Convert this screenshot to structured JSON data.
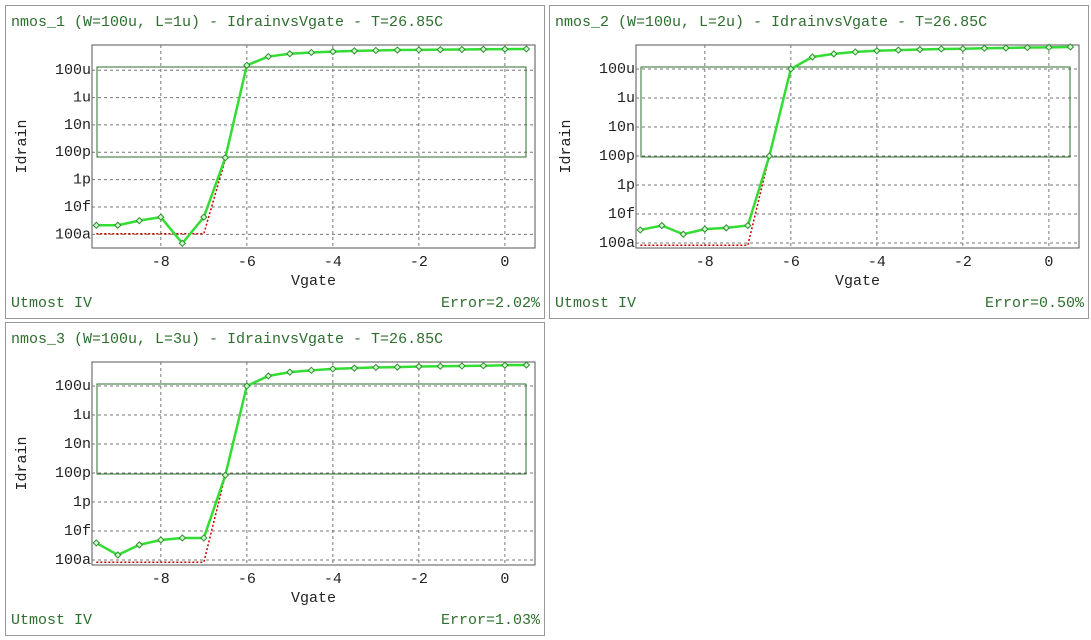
{
  "chart_data": [
    {
      "type": "line",
      "title": "nmos_1 (W=100u, L=1u) - IdrainvsVgate - T=26.85C",
      "x_label": "Vgate",
      "y_label": "Idrain",
      "footer_left": "Utmost IV",
      "footer_right": "Error=2.02%",
      "log_y": true,
      "grid": true,
      "xlim": [
        -9.6,
        0.7
      ],
      "xticks": [
        -8,
        -6,
        -4,
        -2,
        0
      ],
      "ylim": [
        1e-17,
        0.007
      ],
      "yticks": [
        {
          "value": 1e-16,
          "label": "100a"
        },
        {
          "value": 1e-14,
          "label": "10f"
        },
        {
          "value": 1e-12,
          "label": "1p"
        },
        {
          "value": 1e-10,
          "label": "100p"
        },
        {
          "value": 1e-08,
          "label": "10n"
        },
        {
          "value": 1e-06,
          "label": "1u"
        },
        {
          "value": 0.0001,
          "label": "100u"
        }
      ],
      "x": [
        -9.5,
        -9,
        -8.5,
        -8,
        -7.5,
        -7,
        -6.5,
        -6,
        -5.5,
        -5,
        -4.5,
        -4,
        -3.5,
        -3,
        -2.5,
        -2,
        -1.5,
        -1,
        -0.5,
        0,
        0.5
      ],
      "series": [
        {
          "color": "#cc0000",
          "line_style": "dotted",
          "markers": false,
          "values": [
            1.1e-16,
            1.1e-16,
            1.1e-16,
            1.1e-16,
            1.1e-16,
            1.1e-16,
            3e-11,
            0.00023,
            0.001,
            0.0016,
            0.002,
            0.0023,
            0.0026,
            0.0028,
            0.003,
            0.0031,
            0.0032,
            0.0033,
            0.0034,
            0.0035,
            0.0036
          ]
        },
        {
          "color": "#33dd33",
          "line_style": "solid",
          "markers": true,
          "values": [
            4.6e-16,
            4.6e-16,
            1e-15,
            1.8e-15,
            2.2e-17,
            1.8e-15,
            4e-11,
            0.00023,
            0.001,
            0.0016,
            0.002,
            0.0023,
            0.0026,
            0.0028,
            0.003,
            0.0031,
            0.0032,
            0.0033,
            0.0034,
            0.0035,
            0.0036
          ]
        }
      ]
    },
    {
      "type": "line",
      "title": "nmos_2 (W=100u, L=2u) - IdrainvsVgate - T=26.85C",
      "x_label": "Vgate",
      "y_label": "Idrain",
      "footer_left": "Utmost IV",
      "footer_right": "Error=0.50%",
      "log_y": true,
      "grid": true,
      "xlim": [
        -9.6,
        0.7
      ],
      "xticks": [
        -8,
        -6,
        -4,
        -2,
        0
      ],
      "ylim": [
        4.5e-17,
        0.0045
      ],
      "yticks": [
        {
          "value": 1e-16,
          "label": "100a"
        },
        {
          "value": 1e-14,
          "label": "10f"
        },
        {
          "value": 1e-12,
          "label": "1p"
        },
        {
          "value": 1e-10,
          "label": "100p"
        },
        {
          "value": 1e-08,
          "label": "10n"
        },
        {
          "value": 1e-06,
          "label": "1u"
        },
        {
          "value": 0.0001,
          "label": "100u"
        }
      ],
      "x": [
        -9.5,
        -9,
        -8.5,
        -8,
        -7.5,
        -7,
        -6.5,
        -6,
        -5.5,
        -5,
        -4.5,
        -4,
        -3.5,
        -3,
        -2.5,
        -2,
        -1.5,
        -1,
        -0.5,
        0,
        0.5
      ],
      "series": [
        {
          "color": "#cc0000",
          "line_style": "dotted",
          "markers": false,
          "values": [
            7e-17,
            7e-17,
            7e-17,
            7e-17,
            7e-17,
            7e-17,
            1e-10,
            0.0001,
            0.00067,
            0.0011,
            0.0015,
            0.0018,
            0.002,
            0.0022,
            0.0024,
            0.0025,
            0.0027,
            0.0028,
            0.003,
            0.0031,
            0.0033
          ]
        },
        {
          "color": "#33dd33",
          "line_style": "solid",
          "markers": true,
          "values": [
            7.9e-16,
            1.6e-15,
            4e-16,
            9e-16,
            1.1e-15,
            1.6e-15,
            1e-10,
            0.0001,
            0.00067,
            0.0011,
            0.0015,
            0.0018,
            0.002,
            0.0022,
            0.0024,
            0.0025,
            0.0027,
            0.0028,
            0.003,
            0.0031,
            0.0033
          ]
        }
      ]
    },
    {
      "type": "line",
      "title": "nmos_3 (W=100u, L=3u) - IdrainvsVgate - T=26.85C",
      "x_label": "Vgate",
      "y_label": "Idrain",
      "footer_left": "Utmost IV",
      "footer_right": "Error=1.03%",
      "log_y": true,
      "grid": true,
      "xlim": [
        -9.6,
        0.7
      ],
      "xticks": [
        -8,
        -6,
        -4,
        -2,
        0
      ],
      "ylim": [
        4.5e-17,
        0.0045
      ],
      "yticks": [
        {
          "value": 1e-16,
          "label": "100a"
        },
        {
          "value": 1e-14,
          "label": "10f"
        },
        {
          "value": 1e-12,
          "label": "1p"
        },
        {
          "value": 1e-10,
          "label": "100p"
        },
        {
          "value": 1e-08,
          "label": "10n"
        },
        {
          "value": 1e-06,
          "label": "1u"
        },
        {
          "value": 0.0001,
          "label": "100u"
        }
      ],
      "x": [
        -9.5,
        -9,
        -8.5,
        -8,
        -7.5,
        -7,
        -6.5,
        -6,
        -5.5,
        -5,
        -4.5,
        -4,
        -3.5,
        -3,
        -2.5,
        -2,
        -1.5,
        -1,
        -0.5,
        0,
        0.5
      ],
      "series": [
        {
          "color": "#cc0000",
          "line_style": "dotted",
          "markers": false,
          "values": [
            7e-17,
            7e-17,
            7e-17,
            7e-17,
            7e-17,
            7e-17,
            7e-11,
            0.0001,
            0.00049,
            0.0009,
            0.0012,
            0.0015,
            0.0017,
            0.0019,
            0.002,
            0.0022,
            0.0023,
            0.0024,
            0.0025,
            0.0027,
            0.0028
          ]
        },
        {
          "color": "#33dd33",
          "line_style": "solid",
          "markers": true,
          "values": [
            1.5e-15,
            2.2e-16,
            1.1e-15,
            2.4e-15,
            3.3e-15,
            3.3e-15,
            7e-11,
            0.0001,
            0.00049,
            0.0009,
            0.0012,
            0.0015,
            0.0017,
            0.0019,
            0.002,
            0.0022,
            0.0023,
            0.0024,
            0.0025,
            0.0027,
            0.0028
          ]
        }
      ]
    }
  ]
}
